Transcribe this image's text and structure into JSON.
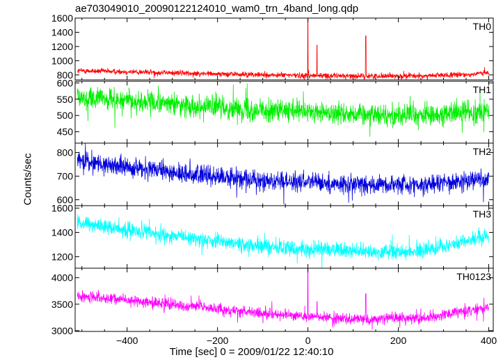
{
  "chart_data": {
    "type": "line",
    "title": "ae703049010_20090122124010_wam0_trn_4band_long.qdp",
    "xlabel": "Time [sec] 0 = 2009/01/22 12:40:10",
    "ylabel": "Counts/sec",
    "xlim": [
      -515,
      410
    ],
    "x_ticks": [
      -400,
      -200,
      0,
      200,
      400
    ],
    "x_tick_labels": [
      "−400",
      "−200",
      "0",
      "200",
      "400"
    ],
    "grid": false,
    "panels": [
      {
        "name": "TH0",
        "color": "#ff0000",
        "ylim": [
          730,
          1600
        ],
        "y_ticks": [
          800,
          1000,
          1200,
          1400,
          1600
        ],
        "y_tick_labels": [
          "800",
          "1000",
          "1200",
          "1400",
          "1600"
        ],
        "baseline": [
          [
            -510,
            860
          ],
          [
            -300,
            830
          ],
          [
            -100,
            800
          ],
          [
            100,
            785
          ],
          [
            250,
            785
          ],
          [
            350,
            805
          ],
          [
            400,
            830
          ]
        ],
        "noise": 28,
        "spikes": [
          [
            0,
            1600
          ],
          [
            20,
            1220
          ],
          [
            128,
            1350
          ]
        ]
      },
      {
        "name": "TH1",
        "color": "#00ee00",
        "ylim": [
          415,
          605
        ],
        "y_ticks": [
          450,
          500,
          550,
          600
        ],
        "y_tick_labels": [
          "450",
          "500",
          "550",
          "600"
        ],
        "baseline": [
          [
            -510,
            555
          ],
          [
            -300,
            535
          ],
          [
            -100,
            515
          ],
          [
            100,
            505
          ],
          [
            250,
            500
          ],
          [
            400,
            515
          ]
        ],
        "noise": 24,
        "spikes": []
      },
      {
        "name": "TH2",
        "color": "#0000dd",
        "ylim": [
          575,
          840
        ],
        "y_ticks": [
          600,
          700,
          800
        ],
        "y_tick_labels": [
          "600",
          "700",
          "800"
        ],
        "baseline": [
          [
            -510,
            765
          ],
          [
            -300,
            715
          ],
          [
            -100,
            680
          ],
          [
            100,
            665
          ],
          [
            250,
            665
          ],
          [
            400,
            690
          ]
        ],
        "noise": 28,
        "spikes": []
      },
      {
        "name": "TH3",
        "color": "#00ffff",
        "ylim": [
          1105,
          1620
        ],
        "y_ticks": [
          1200,
          1400,
          1600
        ],
        "y_tick_labels": [
          "1200",
          "1400",
          "1600"
        ],
        "baseline": [
          [
            -510,
            1480
          ],
          [
            -300,
            1370
          ],
          [
            -100,
            1280
          ],
          [
            100,
            1245
          ],
          [
            250,
            1245
          ],
          [
            400,
            1370
          ]
        ],
        "noise": 45,
        "spikes": []
      },
      {
        "name": "TH0123",
        "color": "#ff00ff",
        "ylim": [
          2985,
          4180
        ],
        "y_ticks": [
          3000,
          3500,
          4000
        ],
        "y_tick_labels": [
          "3000",
          "3500",
          "4000"
        ],
        "baseline": [
          [
            -510,
            3660
          ],
          [
            -300,
            3500
          ],
          [
            -100,
            3320
          ],
          [
            100,
            3220
          ],
          [
            250,
            3230
          ],
          [
            400,
            3430
          ]
        ],
        "noise": 70,
        "spikes": [
          [
            0,
            4180
          ],
          [
            20,
            3550
          ],
          [
            128,
            3700
          ]
        ]
      }
    ]
  }
}
